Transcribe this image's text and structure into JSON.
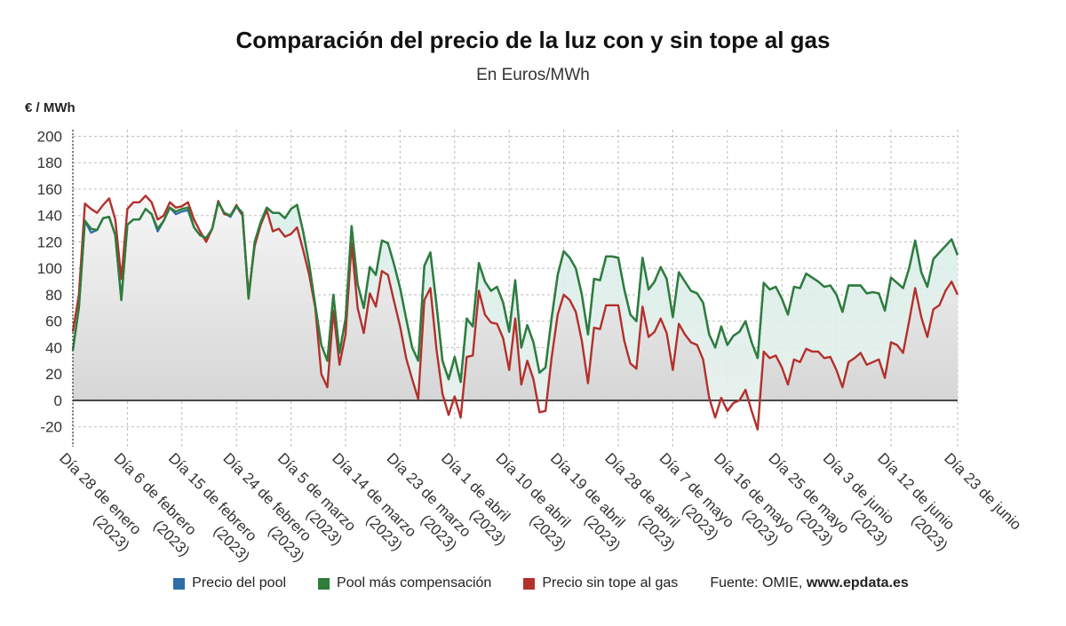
{
  "title": "Comparación del precio de la luz con y sin tope al gas",
  "subtitle": "En Euros/MWh",
  "y_unit": "€ / MWh",
  "legend": [
    {
      "label": "Precio del pool",
      "color": "#2f6fa8"
    },
    {
      "label": "Pool más compensación",
      "color": "#2e7d3a"
    },
    {
      "label": "Precio sin tope al gas",
      "color": "#b3302c"
    }
  ],
  "source": {
    "prefix": "Fuente: OMIE,",
    "site": "www.epdata.es"
  },
  "chart_data": {
    "type": "line",
    "ylim": [
      -35,
      205
    ],
    "yticks": [
      200,
      180,
      160,
      140,
      120,
      100,
      80,
      60,
      40,
      20,
      0,
      -20
    ],
    "grid": true,
    "legend_position": "bottom",
    "x_tick_labels": [
      {
        "index": 0,
        "line1": "Día 28 de enero",
        "line2": "(2023)"
      },
      {
        "index": 9,
        "line1": "Día 6 de febrero",
        "line2": "(2023)"
      },
      {
        "index": 18,
        "line1": "Día 15 de febrero",
        "line2": "(2023)"
      },
      {
        "index": 27,
        "line1": "Día 24 de febrero",
        "line2": "(2023)"
      },
      {
        "index": 36,
        "line1": "Día 5 de marzo",
        "line2": "(2023)"
      },
      {
        "index": 45,
        "line1": "Día 14 de marzo",
        "line2": "(2023)"
      },
      {
        "index": 54,
        "line1": "Día 23 de marzo",
        "line2": "(2023)"
      },
      {
        "index": 63,
        "line1": "Día 1 de abril",
        "line2": "(2023)"
      },
      {
        "index": 72,
        "line1": "Día 10 de abril",
        "line2": "(2023)"
      },
      {
        "index": 81,
        "line1": "Día 19 de abril",
        "line2": "(2023)"
      },
      {
        "index": 90,
        "line1": "Día 28 de abril",
        "line2": "(2023)"
      },
      {
        "index": 99,
        "line1": "Día 7 de mayo",
        "line2": "(2023)"
      },
      {
        "index": 108,
        "line1": "Día 16 de mayo",
        "line2": "(2023)"
      },
      {
        "index": 117,
        "line1": "Día 25 de mayo",
        "line2": "(2023)"
      },
      {
        "index": 126,
        "line1": "Día 3 de junio",
        "line2": "(2023)"
      },
      {
        "index": 135,
        "line1": "Día 12 de junio",
        "line2": "(2023)"
      },
      {
        "index": 146,
        "line1": "Día 23 de junio",
        "line2": ""
      }
    ],
    "series": [
      {
        "name": "Precio del pool",
        "color": "#2f6fa8",
        "values": [
          38,
          70,
          136,
          127,
          129,
          138,
          139,
          125,
          76,
          133,
          137,
          137,
          145,
          141,
          128,
          136,
          146,
          141,
          143,
          144,
          131,
          125,
          123,
          130,
          150,
          142,
          139,
          147,
          140,
          77,
          120,
          135,
          146,
          142,
          142,
          138,
          145,
          148,
          128,
          103,
          72,
          42,
          30,
          80,
          36,
          62,
          132,
          88,
          70,
          101,
          95,
          121,
          119,
          103,
          85,
          62,
          40,
          30,
          102,
          112,
          73,
          30,
          16,
          33,
          14,
          62,
          56,
          104,
          90,
          83,
          86,
          74,
          52,
          91,
          40,
          57,
          44,
          21,
          25,
          62,
          95,
          113,
          108,
          100,
          80,
          50,
          92,
          91,
          109,
          109,
          108,
          84,
          65,
          60,
          108,
          84,
          90,
          101,
          92,
          63,
          97,
          90,
          83,
          81,
          74,
          50,
          40,
          56,
          42,
          49,
          52,
          60,
          44,
          32,
          89,
          84,
          86,
          77,
          65,
          86,
          85,
          96,
          93,
          90,
          86,
          87,
          80,
          67,
          87,
          87,
          87,
          81,
          82,
          81,
          68,
          93,
          89,
          85,
          100,
          121,
          97,
          86,
          107,
          112,
          117,
          122,
          110
        ]
      },
      {
        "name": "Pool más compensación",
        "color": "#2e7d3a",
        "values": [
          38,
          70,
          136,
          130,
          129,
          138,
          139,
          125,
          76,
          133,
          137,
          137,
          145,
          141,
          130,
          136,
          146,
          143,
          145,
          146,
          131,
          125,
          123,
          130,
          150,
          142,
          140,
          147,
          142,
          77,
          120,
          135,
          146,
          142,
          142,
          138,
          145,
          148,
          128,
          103,
          72,
          42,
          30,
          80,
          36,
          62,
          132,
          88,
          70,
          101,
          95,
          121,
          119,
          103,
          85,
          62,
          40,
          30,
          102,
          112,
          73,
          30,
          16,
          33,
          14,
          62,
          56,
          104,
          90,
          83,
          86,
          74,
          52,
          91,
          40,
          57,
          44,
          21,
          25,
          62,
          95,
          113,
          108,
          100,
          80,
          50,
          92,
          91,
          109,
          109,
          108,
          84,
          65,
          60,
          108,
          84,
          90,
          101,
          92,
          63,
          97,
          90,
          83,
          81,
          74,
          50,
          40,
          56,
          42,
          49,
          52,
          60,
          44,
          32,
          89,
          84,
          86,
          77,
          65,
          86,
          85,
          96,
          93,
          90,
          86,
          87,
          80,
          67,
          87,
          87,
          87,
          81,
          82,
          81,
          68,
          93,
          89,
          85,
          100,
          121,
          97,
          86,
          107,
          112,
          117,
          122,
          110
        ]
      },
      {
        "name": "Precio sin tope al gas",
        "color": "#b3302c",
        "values": [
          52,
          80,
          149,
          145,
          142,
          148,
          153,
          137,
          92,
          145,
          150,
          150,
          155,
          150,
          137,
          140,
          150,
          146,
          147,
          150,
          137,
          128,
          120,
          130,
          151,
          141,
          140,
          148,
          140,
          80,
          117,
          133,
          144,
          128,
          130,
          124,
          126,
          131,
          114,
          95,
          70,
          20,
          10,
          68,
          27,
          50,
          119,
          70,
          51,
          81,
          71,
          98,
          95,
          75,
          56,
          32,
          16,
          1,
          76,
          85,
          39,
          5,
          -11,
          3,
          -13,
          33,
          34,
          83,
          65,
          59,
          58,
          47,
          23,
          62,
          12,
          30,
          16,
          -9,
          -8,
          32,
          65,
          80,
          76,
          67,
          45,
          13,
          55,
          54,
          72,
          72,
          72,
          45,
          28,
          24,
          71,
          48,
          52,
          62,
          51,
          23,
          58,
          50,
          44,
          42,
          31,
          2,
          -13,
          2,
          -8,
          -2,
          0,
          8,
          -8,
          -22,
          37,
          32,
          34,
          25,
          12,
          31,
          29,
          39,
          37,
          37,
          32,
          33,
          23,
          10,
          29,
          32,
          36,
          27,
          29,
          31,
          17,
          44,
          42,
          36,
          60,
          85,
          63,
          48,
          69,
          72,
          83,
          90,
          80
        ]
      }
    ]
  }
}
